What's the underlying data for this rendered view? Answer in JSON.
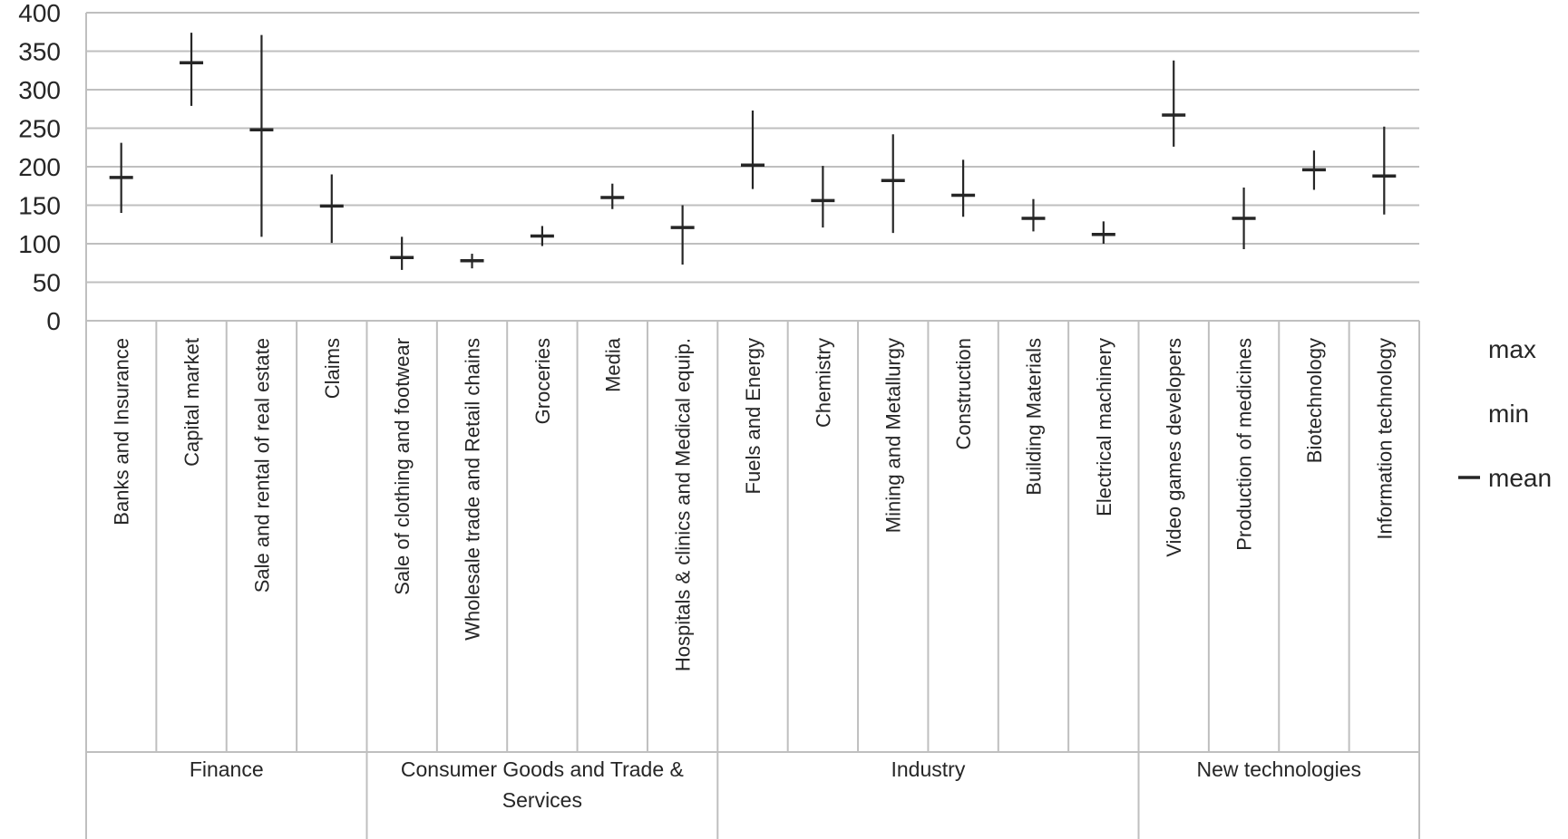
{
  "chart_data": {
    "type": "high-low-mean",
    "groups": [
      {
        "name": "Finance",
        "categories": [
          "Banks and Insurance",
          "Capital market",
          "Sale and rental of real estate",
          "Claims"
        ]
      },
      {
        "name": "Consumer Goods and Trade & Services",
        "categories": [
          "Sale of clothing and footwear",
          "Wholesale trade and Retail chains",
          "Groceries",
          "Media",
          "Hospitals & clinics and Medical equip."
        ]
      },
      {
        "name": "Industry",
        "categories": [
          "Fuels and Energy",
          "Chemistry",
          "Mining and Metallurgy",
          "Construction",
          "Building Materials",
          "Electrical machinery"
        ]
      },
      {
        "name": "New technologies",
        "categories": [
          "Video games developers",
          "Production of medicines",
          "Biotechnology",
          "Information technology"
        ]
      }
    ],
    "series": [
      {
        "name": "max",
        "color": "#262626",
        "marker": "none",
        "values": [
          231,
          374,
          371,
          190,
          109,
          87,
          123,
          178,
          150,
          273,
          201,
          242,
          209,
          158,
          129,
          338,
          173,
          221,
          252
        ]
      },
      {
        "name": "min",
        "color": "#262626",
        "marker": "none",
        "values": [
          140,
          279,
          109,
          101,
          66,
          68,
          97,
          145,
          73,
          171,
          121,
          114,
          135,
          116,
          100,
          226,
          93,
          170,
          138
        ]
      },
      {
        "name": "mean",
        "color": "#262626",
        "marker": "dash",
        "values": [
          186,
          335,
          248,
          149,
          82,
          78,
          110,
          160,
          121,
          202,
          156,
          182,
          163,
          133,
          112,
          267,
          133,
          196,
          188
        ]
      }
    ],
    "ylim": [
      0,
      400
    ],
    "yticks": [
      0,
      50,
      100,
      150,
      200,
      250,
      300,
      350,
      400
    ],
    "grid": true
  }
}
